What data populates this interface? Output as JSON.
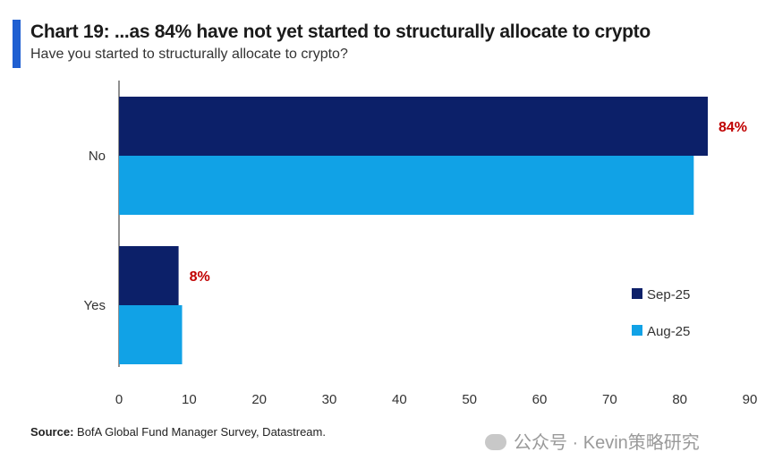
{
  "header": {
    "title": "Chart 19: ...as 84% have not yet started to structurally allocate to crypto",
    "subtitle": "Have you started to structurally allocate to crypto?"
  },
  "footer": {
    "source_label": "Source:",
    "source_text": "BofA Global Fund Manager Survey, Datastream.",
    "watermark": "公众号 · Kevin策略研究"
  },
  "colors": {
    "accent": "#1f5fd1",
    "sep25": "#0c2069",
    "aug25": "#11a2e6",
    "data_label": "#c00000"
  },
  "chart_data": {
    "type": "bar",
    "orientation": "horizontal",
    "categories": [
      "No",
      "Yes"
    ],
    "series": [
      {
        "name": "Sep-25",
        "values": [
          84,
          8.5
        ]
      },
      {
        "name": "Aug-25",
        "values": [
          82,
          9
        ]
      }
    ],
    "data_labels": [
      {
        "category": "No",
        "series": "Sep-25",
        "text": "84%"
      },
      {
        "category": "Yes",
        "series": "Sep-25",
        "text": "8%"
      }
    ],
    "x_ticks": [
      0,
      10,
      20,
      30,
      40,
      50,
      60,
      70,
      80,
      90
    ],
    "xlim": [
      0,
      90
    ],
    "xlabel": "",
    "ylabel": "",
    "grid": false,
    "legend_position": "right"
  }
}
